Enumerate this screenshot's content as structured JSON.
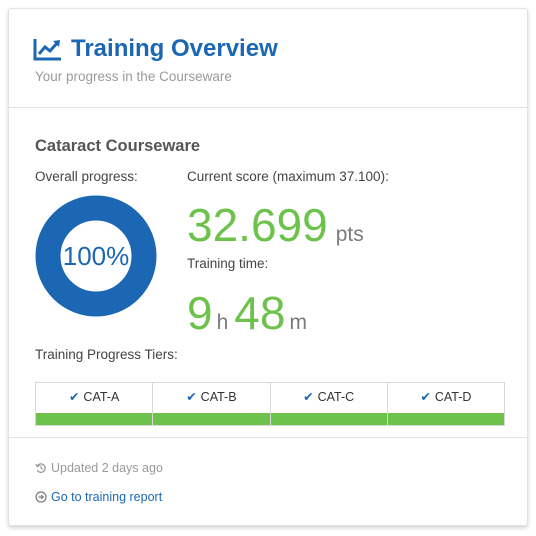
{
  "header": {
    "title": "Training Overview",
    "subtitle": "Your progress in the Courseware",
    "icon": "line-chart-icon"
  },
  "course": {
    "name": "Cataract Courseware",
    "overall_progress_label": "Overall progress:",
    "progress_percent_text": "100%",
    "progress_fraction": 1.0,
    "current_score_label": "Current score (maximum 37.100):",
    "score_value": "32.699",
    "score_unit": "pts",
    "training_time_label": "Training time:",
    "time_hours": "9",
    "time_hours_unit": "h",
    "time_minutes": "48",
    "time_minutes_unit": "m"
  },
  "tiers": {
    "label": "Training Progress Tiers:",
    "items": [
      {
        "name": "CAT-A",
        "complete": true
      },
      {
        "name": "CAT-B",
        "complete": true
      },
      {
        "name": "CAT-C",
        "complete": true
      },
      {
        "name": "CAT-D",
        "complete": true
      }
    ]
  },
  "footer": {
    "updated_text": "Updated 2 days ago",
    "report_link": "Go to training report"
  },
  "colors": {
    "accent_blue": "#1b67b3",
    "success_green": "#6cc24a",
    "muted_gray": "#9a9a9a"
  }
}
